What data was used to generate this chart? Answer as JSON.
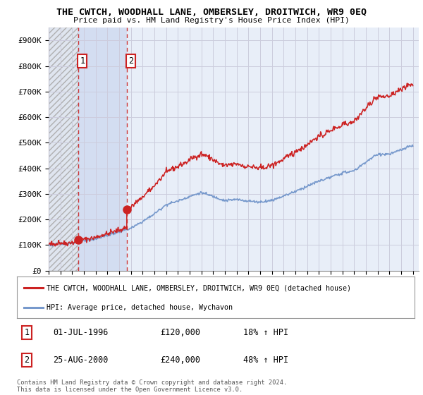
{
  "title": "THE CWTCH, WOODHALL LANE, OMBERSLEY, DROITWICH, WR9 0EQ",
  "subtitle": "Price paid vs. HM Land Registry's House Price Index (HPI)",
  "ylabel_ticks": [
    "£0",
    "£100K",
    "£200K",
    "£300K",
    "£400K",
    "£500K",
    "£600K",
    "£700K",
    "£800K",
    "£900K"
  ],
  "ytick_values": [
    0,
    100000,
    200000,
    300000,
    400000,
    500000,
    600000,
    700000,
    800000,
    900000
  ],
  "ylim": [
    0,
    950000
  ],
  "xlim_start": 1994.0,
  "xlim_end": 2025.5,
  "sale1_date": 1996.5,
  "sale1_price": 120000,
  "sale2_date": 2000.65,
  "sale2_price": 240000,
  "legend_line1": "THE CWTCH, WOODHALL LANE, OMBERSLEY, DROITWICH, WR9 0EQ (detached house)",
  "legend_line2": "HPI: Average price, detached house, Wychavon",
  "footnote": "Contains HM Land Registry data © Crown copyright and database right 2024.\nThis data is licensed under the Open Government Licence v3.0.",
  "line_color_red": "#cc2222",
  "line_color_blue": "#7799cc",
  "grid_color": "#ccccdd",
  "background_plot": "#e8eef8",
  "dashed_line_color": "#cc2222",
  "marker_color": "#cc2222",
  "box_border_color": "#cc2222",
  "hatch_bg": "#dde4ee",
  "blue_span_color": "#d0daf0"
}
